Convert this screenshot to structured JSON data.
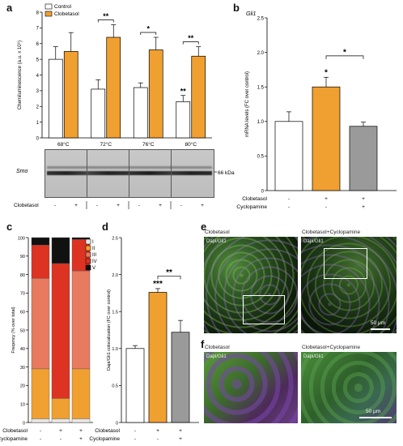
{
  "panels": {
    "a": "a",
    "b": "b",
    "c": "c",
    "d": "d",
    "e": "e",
    "f": "f"
  },
  "chart_data": [
    {
      "id": "a",
      "type": "bar",
      "ylabel": "Chemiluminescence (a.u. x 10⁶)",
      "ylim": [
        0,
        8
      ],
      "yticks": [
        "0",
        "1",
        "2",
        "3",
        "4",
        "5",
        "6",
        "7",
        "8"
      ],
      "categories": [
        "68°C",
        "72°C",
        "76°C",
        "80°C"
      ],
      "series": [
        {
          "name": "Control",
          "color": "#ffffff",
          "values": [
            5.0,
            3.1,
            3.2,
            2.3
          ],
          "errors": [
            0.8,
            0.6,
            0.3,
            0.4
          ]
        },
        {
          "name": "Clobetasol",
          "color": "#f0a030",
          "values": [
            5.5,
            6.4,
            5.6,
            5.2
          ],
          "errors": [
            1.2,
            0.8,
            0.8,
            0.6
          ]
        }
      ],
      "annotations": [
        {
          "group": 1,
          "text": "**",
          "type": "bracket"
        },
        {
          "group": 2,
          "text": "*",
          "type": "bracket"
        },
        {
          "group": 3,
          "text": "**",
          "type": "bracket"
        },
        {
          "group": 3,
          "text": "**",
          "type": "above-control"
        }
      ],
      "legend_position": "top-left",
      "blot": {
        "label": "Smo",
        "kda": "66 kDa",
        "row_label": "Clobetasol",
        "signs": [
          "-",
          "+",
          "-",
          "+",
          "-",
          "+",
          "-",
          "+"
        ]
      }
    },
    {
      "id": "b",
      "type": "bar",
      "title": "Gli1",
      "ylabel": "mRNA levels (FC over control)",
      "ylim": [
        0,
        2.5
      ],
      "yticks": [
        "0",
        "0.5",
        "1.0",
        "1.5",
        "2.0",
        "2.5"
      ],
      "categories": [
        "1",
        "2",
        "3"
      ],
      "values": [
        1.0,
        1.5,
        0.93
      ],
      "errors": [
        0.14,
        0.14,
        0.06
      ],
      "colors": [
        "#ffffff",
        "#f0a030",
        "#9a9a9a"
      ],
      "annotations": [
        {
          "text": "*",
          "type": "above-bar",
          "bar": 1
        },
        {
          "text": "*",
          "type": "bracket",
          "from": 1,
          "to": 2
        }
      ],
      "row_labels": [
        "Clobetasol",
        "Cyclopamine"
      ],
      "row_signs": [
        [
          "-",
          "+",
          "+"
        ],
        [
          "-",
          "-",
          "+"
        ]
      ]
    },
    {
      "id": "c",
      "type": "bar",
      "stacked": true,
      "ylabel": "Freqency (% over total)",
      "ylim": [
        0,
        100
      ],
      "yticks": [
        "0",
        "10",
        "20",
        "30",
        "40",
        "50",
        "60",
        "70",
        "80",
        "90",
        "100"
      ],
      "categories": [
        "1",
        "2",
        "3"
      ],
      "series": [
        {
          "name": "I",
          "color": "#e8e8e8",
          "values": [
            2,
            2,
            2
          ]
        },
        {
          "name": "II",
          "color": "#f0a030",
          "values": [
            27,
            11,
            27
          ]
        },
        {
          "name": "III",
          "color": "#e87a60",
          "values": [
            49,
            0,
            53
          ]
        },
        {
          "name": "IV",
          "color": "#dd3322",
          "values": [
            18,
            73,
            17
          ]
        },
        {
          "name": "V",
          "color": "#111111",
          "values": [
            4,
            14,
            1
          ]
        }
      ],
      "legend_position": "top-right",
      "row_labels": [
        "Clobetasol",
        "Cyclopamine"
      ],
      "row_signs": [
        [
          "-",
          "+",
          "+"
        ],
        [
          "-",
          "-",
          "+"
        ]
      ]
    },
    {
      "id": "d",
      "type": "bar",
      "ylabel": "Dapi/Gli1 colocalization (FC over control)",
      "ylim": [
        0,
        2.5
      ],
      "yticks": [
        "0",
        "0.5",
        "1.0",
        "1.5",
        "2.0",
        "2.5"
      ],
      "categories": [
        "1",
        "2",
        "3"
      ],
      "values": [
        1.0,
        1.76,
        1.22
      ],
      "errors": [
        0.04,
        0.05,
        0.16
      ],
      "colors": [
        "#ffffff",
        "#f0a030",
        "#9a9a9a"
      ],
      "annotations": [
        {
          "text": "***",
          "type": "above-bar",
          "bar": 1
        },
        {
          "text": "**",
          "type": "bracket",
          "from": 1,
          "to": 2
        }
      ],
      "row_labels": [
        "Clobetasol",
        "Cyclopamine"
      ],
      "row_signs": [
        [
          "-",
          "+",
          "+"
        ],
        [
          "-",
          "-",
          "+"
        ]
      ]
    }
  ],
  "images": {
    "e_left_title": "Clobetasol",
    "e_right_title": "Clobetasol+Cyclopamine",
    "e_overlay_left": "Dapi/Gli1",
    "e_overlay_right": "Dapi/Gli1",
    "e_scale": "50 μm",
    "f_overlay_left": "Dapi/Gli1",
    "f_overlay_right": "Dapi/Gli1",
    "f_left_title": "Clobetasol",
    "f_right_title": "Clobetasol+Cyclopamine",
    "f_scale": "50 μm"
  }
}
